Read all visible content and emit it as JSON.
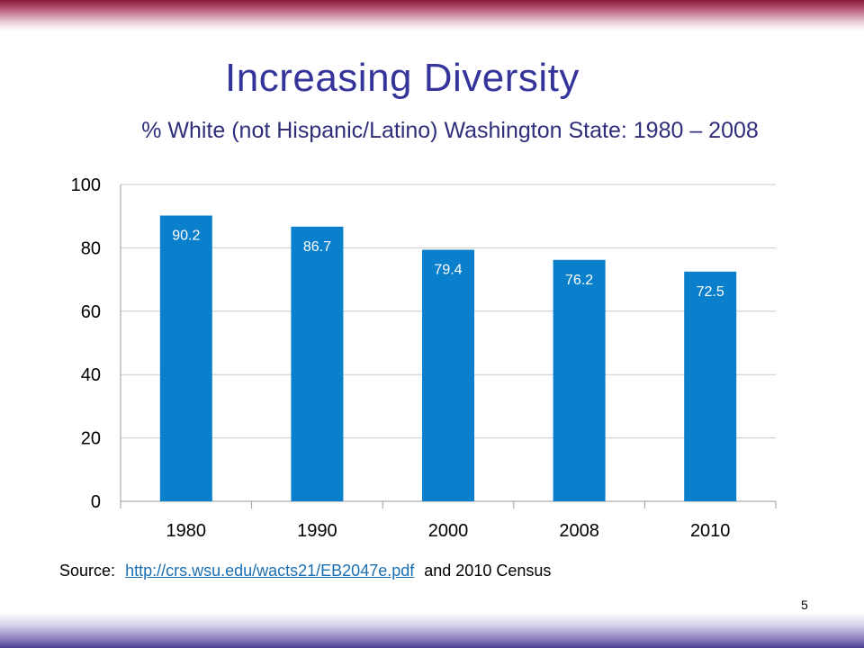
{
  "slide": {
    "title": "Increasing Diversity",
    "subtitle": "% White (not Hispanic/Latino) Washington State: 1980 – 2008",
    "source_prefix": "Source:",
    "source_link": "http://crs.wsu.edu/wacts21/EB2047e.pdf",
    "source_suffix": "and 2010 Census",
    "page_number": "5"
  },
  "colors": {
    "bar": "#0a7fcb",
    "title": "#34349a",
    "grid": "#c8c8c8"
  },
  "chart_data": {
    "type": "bar",
    "title": "% White (not Hispanic/Latino) Washington State: 1980 – 2008",
    "categories": [
      "1980",
      "1990",
      "2000",
      "2008",
      "2010"
    ],
    "values": [
      90.2,
      86.7,
      79.4,
      76.2,
      72.5
    ],
    "value_labels": [
      "90.2",
      "86.7",
      "79.4",
      "76.2",
      "72.5"
    ],
    "xlabel": "",
    "ylabel": "",
    "ylim": [
      0,
      100
    ],
    "yticks": [
      0,
      20,
      40,
      60,
      80,
      100
    ],
    "grid": true,
    "legend": false
  }
}
